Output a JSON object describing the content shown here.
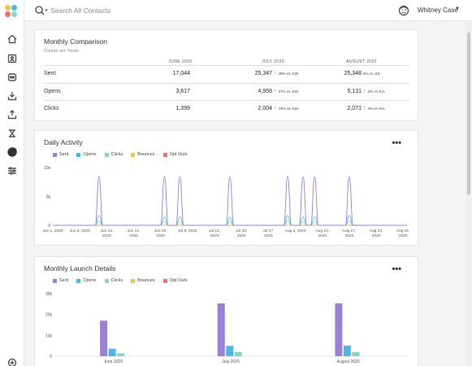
{
  "search": {
    "placeholder": "Search All Contacts"
  },
  "user": {
    "name": "Whitney Case"
  },
  "sidebar": {
    "items": [
      {
        "name": "home-icon"
      },
      {
        "name": "contacts-icon"
      },
      {
        "name": "campaigns-icon"
      },
      {
        "name": "inbox-icon"
      },
      {
        "name": "outbox-icon"
      },
      {
        "name": "automation-icon"
      },
      {
        "name": "reports-icon"
      },
      {
        "name": "settings-sliders-icon"
      },
      {
        "name": "add-icon"
      }
    ]
  },
  "monthly_comparison": {
    "title": "Monthly Comparison",
    "subtitle": "Counts are Totals",
    "columns": [
      "JUNE 2020",
      "JULY 2020",
      "AUGUST 2020"
    ],
    "rows": [
      {
        "label": "Sent",
        "june": "17,044",
        "july": "25,347",
        "july_delta": "49% vs JUN",
        "aug": "25,348",
        "aug_delta": "0% vs JUL",
        "aug_arrow": false
      },
      {
        "label": "Opens",
        "june": "3,617",
        "july": "4,958",
        "july_delta": "37% vs JUN",
        "aug": "5,131",
        "aug_delta": "3% vs JUL",
        "aug_arrow": true
      },
      {
        "label": "Clicks",
        "june": "1,399",
        "july": "2,004",
        "july_delta": "43% vs JUN",
        "aug": "2,071",
        "aug_delta": "3% vs JUL",
        "aug_arrow": true
      }
    ]
  },
  "legend": [
    {
      "label": "Sent",
      "color": "#9b7fd9"
    },
    {
      "label": "Opens",
      "color": "#4db6e8"
    },
    {
      "label": "Clicks",
      "color": "#7fd8c3"
    },
    {
      "label": "Bounces",
      "color": "#f5c342"
    },
    {
      "label": "Opt Outs",
      "color": "#ef6f6f"
    }
  ],
  "daily_activity": {
    "title": "Daily Activity",
    "more": "•••"
  },
  "monthly_launch": {
    "title": "Monthly Launch Details",
    "more": "•••"
  },
  "chart_data": [
    {
      "type": "line",
      "title": "Daily Activity",
      "ylim": [
        0,
        10000
      ],
      "yticks": [
        "0",
        "5k",
        "10k"
      ],
      "xticks": [
        "Jun 1, 2020",
        "Jun 8, 2020",
        "Jun 15, 2020",
        "Jun 22, 2020",
        "Jun 29, 2020",
        "Jul 6, 2020",
        "Jul 13, 2020",
        "Jul 20, 2020",
        "Jul 27, 2020",
        "Aug 3, 2020",
        "Aug 10, 2020",
        "Aug 17, 2020",
        "Aug 24, 2020",
        "Aug 31, 2020"
      ],
      "series": [
        {
          "name": "Sent",
          "color": "#9b7fd9",
          "peaks": [
            {
              "x": 12,
              "y": 8500
            },
            {
              "x": 29,
              "y": 8500
            },
            {
              "x": 33,
              "y": 8400
            },
            {
              "x": 46,
              "y": 8400
            },
            {
              "x": 61,
              "y": 8500
            },
            {
              "x": 65,
              "y": 8400
            },
            {
              "x": 68,
              "y": 8400
            },
            {
              "x": 77,
              "y": 8400
            }
          ]
        },
        {
          "name": "Opens",
          "color": "#4db6e8",
          "peaks": [
            {
              "x": 12,
              "y": 1700
            },
            {
              "x": 29,
              "y": 1500
            },
            {
              "x": 33,
              "y": 1500
            },
            {
              "x": 46,
              "y": 1400
            },
            {
              "x": 61,
              "y": 1700
            },
            {
              "x": 65,
              "y": 1500
            },
            {
              "x": 68,
              "y": 1500
            },
            {
              "x": 77,
              "y": 1700
            }
          ]
        },
        {
          "name": "Clicks",
          "color": "#7fd8c3",
          "peaks": [
            {
              "x": 12,
              "y": 700
            },
            {
              "x": 29,
              "y": 600
            },
            {
              "x": 33,
              "y": 600
            },
            {
              "x": 46,
              "y": 600
            },
            {
              "x": 61,
              "y": 700
            },
            {
              "x": 65,
              "y": 600
            },
            {
              "x": 68,
              "y": 600
            },
            {
              "x": 77,
              "y": 700
            }
          ]
        },
        {
          "name": "Bounces",
          "color": "#f5c342",
          "peaks": []
        },
        {
          "name": "Opt Outs",
          "color": "#ef6f6f",
          "peaks": []
        }
      ],
      "x_days": 93
    },
    {
      "type": "bar",
      "title": "Monthly Launch Details",
      "ylim": [
        0,
        30000
      ],
      "yticks": [
        "0",
        "10k",
        "20k",
        "30k"
      ],
      "categories": [
        "June 2020",
        "July 2020",
        "August 2020"
      ],
      "series": [
        {
          "name": "Sent",
          "color": "#9b7fd9",
          "values": [
            17044,
            25347,
            25348
          ]
        },
        {
          "name": "Opens",
          "color": "#4db6e8",
          "values": [
            3617,
            4958,
            5131
          ]
        },
        {
          "name": "Clicks",
          "color": "#7fd8c3",
          "values": [
            1399,
            2004,
            2071
          ]
        },
        {
          "name": "Bounces",
          "color": "#f5c342",
          "values": [
            0,
            0,
            0
          ]
        },
        {
          "name": "Opt Outs",
          "color": "#ef6f6f",
          "values": [
            0,
            0,
            0
          ]
        }
      ]
    }
  ]
}
